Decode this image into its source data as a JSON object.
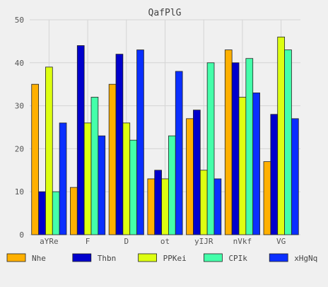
{
  "chart_data": {
    "type": "bar",
    "title": "QafPlG",
    "xlabel": "",
    "ylabel": "",
    "ylim": [
      0,
      50
    ],
    "yticks": [
      0,
      10,
      20,
      30,
      40,
      50
    ],
    "grid": true,
    "legend_position": "bottom",
    "categories": [
      "aYRe",
      "F",
      "D",
      "ot",
      "yIJR",
      "nVkf",
      "VG"
    ],
    "series": [
      {
        "name": "Nhe",
        "color": "#ffb000",
        "values": [
          35,
          11,
          35,
          13,
          27,
          43,
          17
        ]
      },
      {
        "name": "Thbn",
        "color": "#0000cc",
        "values": [
          10,
          44,
          42,
          15,
          29,
          40,
          28
        ]
      },
      {
        "name": "PPKei",
        "color": "#ddff11",
        "values": [
          39,
          26,
          26,
          13,
          15,
          32,
          46
        ]
      },
      {
        "name": "CPIk",
        "color": "#44ffaa",
        "values": [
          10,
          32,
          22,
          23,
          40,
          41,
          43
        ]
      },
      {
        "name": "xHgNq",
        "color": "#0a2fff",
        "values": [
          26,
          23,
          43,
          38,
          13,
          33,
          27
        ]
      }
    ]
  }
}
